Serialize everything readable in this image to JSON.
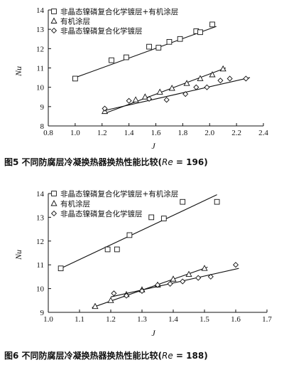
{
  "chart_data": [
    {
      "type": "scatter",
      "title": "",
      "xlabel": "J",
      "ylabel": "Nu",
      "xlim": [
        0.8,
        2.4
      ],
      "ylim": [
        8,
        14
      ],
      "xticks": [
        "0.8",
        "1.0",
        "1.2",
        "1.4",
        "1.6",
        "1.8",
        "2.0",
        "2.2",
        "2.4"
      ],
      "yticks": [
        "8",
        "9",
        "10",
        "11",
        "12",
        "13",
        "14"
      ],
      "legend_placement": "top-left",
      "caption": {
        "prefix": "图5   不同防腐层冷凝换热器换热性能比较(",
        "re_symbol": "Re",
        "re_value": " = 196)"
      },
      "series": [
        {
          "name": "非晶态镍磷复合化学镀层+有机涂层",
          "marker": "square",
          "x": [
            1.0,
            1.27,
            1.38,
            1.55,
            1.62,
            1.7,
            1.78,
            1.9,
            1.93,
            2.02
          ],
          "y": [
            10.45,
            11.4,
            11.55,
            12.1,
            12.05,
            12.35,
            12.5,
            12.9,
            12.85,
            13.25
          ],
          "fit": [
            [
              0.98,
              10.45
            ],
            [
              2.05,
              13.15
            ]
          ]
        },
        {
          "name": "有机涂层",
          "marker": "triangle",
          "x": [
            1.22,
            1.45,
            1.52,
            1.63,
            1.72,
            1.83,
            1.93,
            2.02,
            2.1
          ],
          "y": [
            8.75,
            9.35,
            9.5,
            9.75,
            9.95,
            10.2,
            10.45,
            10.65,
            10.95
          ],
          "fit": [
            [
              1.22,
              8.65
            ],
            [
              2.12,
              11.0
            ]
          ]
        },
        {
          "name": "非晶态镍磷复合化学镀层",
          "marker": "diamond",
          "x": [
            1.22,
            1.4,
            1.55,
            1.68,
            1.82,
            1.9,
            1.98,
            2.08,
            2.15,
            2.27
          ],
          "y": [
            8.9,
            9.3,
            9.4,
            9.35,
            9.65,
            10.0,
            10.0,
            10.35,
            10.45,
            10.45
          ],
          "fit": [
            [
              1.22,
              8.8
            ],
            [
              2.3,
              10.5
            ]
          ]
        }
      ]
    },
    {
      "type": "scatter",
      "title": "",
      "xlabel": "J",
      "ylabel": "Nu",
      "xlim": [
        1.0,
        1.7
      ],
      "ylim": [
        9,
        14
      ],
      "xticks": [
        "1.0",
        "1.1",
        "1.2",
        "1.3",
        "1.4",
        "1.5",
        "1.6",
        "1.7"
      ],
      "yticks": [
        "9",
        "10",
        "11",
        "12",
        "13",
        "14"
      ],
      "legend_placement": "top-left",
      "caption": {
        "prefix": "图6   不同防腐层冷凝换热器换热性能比较(",
        "re_symbol": "Re",
        "re_value": " = 188)"
      },
      "series": [
        {
          "name": "非晶态镍磷复合化学镀层+有机涂层",
          "marker": "square",
          "x": [
            1.04,
            1.19,
            1.22,
            1.26,
            1.33,
            1.37,
            1.43,
            1.54
          ],
          "y": [
            10.85,
            11.65,
            11.65,
            12.25,
            13.0,
            12.95,
            13.65,
            13.65
          ],
          "fit": [
            [
              1.04,
              10.85
            ],
            [
              1.54,
              13.95
            ]
          ]
        },
        {
          "name": "有机涂层",
          "marker": "triangle",
          "x": [
            1.15,
            1.2,
            1.25,
            1.3,
            1.35,
            1.4,
            1.45,
            1.5
          ],
          "y": [
            9.25,
            9.5,
            9.75,
            9.95,
            10.15,
            10.4,
            10.6,
            10.85
          ],
          "fit": [
            [
              1.14,
              9.2
            ],
            [
              1.51,
              10.9
            ]
          ]
        },
        {
          "name": "非晶态镍磷复合化学镀层",
          "marker": "diamond",
          "x": [
            1.21,
            1.25,
            1.3,
            1.35,
            1.39,
            1.43,
            1.48,
            1.52,
            1.6
          ],
          "y": [
            9.8,
            9.7,
            9.9,
            10.15,
            10.2,
            10.3,
            10.45,
            10.5,
            11.0
          ],
          "fit": [
            [
              1.2,
              9.65
            ],
            [
              1.61,
              10.85
            ]
          ]
        }
      ]
    }
  ]
}
